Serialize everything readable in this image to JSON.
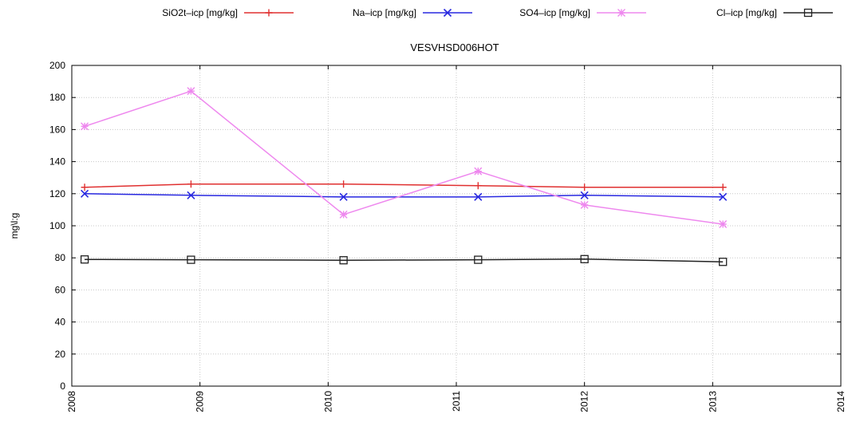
{
  "chart_data": {
    "type": "line",
    "title": "VESVHSD006HOT",
    "ylabel": "mg\\l:g",
    "xlabel": "",
    "x_ticks": [
      "2008",
      "2009",
      "2010",
      "2011",
      "2012",
      "2013",
      "2014"
    ],
    "y_ticks": [
      "0",
      "20",
      "40",
      "60",
      "80",
      "100",
      "120",
      "140",
      "160",
      "180",
      "200"
    ],
    "xlim": [
      2008,
      2014
    ],
    "ylim": [
      0,
      200
    ],
    "grid": true,
    "legend_position": "top",
    "x": [
      2008.1,
      2008.93,
      2010.12,
      2011.17,
      2012.0,
      2013.08
    ],
    "series": [
      {
        "name": "SiO2t–icp [mg/kg]",
        "color": "#e03030",
        "marker": "plus",
        "values": [
          124,
          126,
          126,
          125,
          124,
          124
        ]
      },
      {
        "name": "Na–icp [mg/kg]",
        "color": "#2828e0",
        "marker": "cross",
        "values": [
          120,
          119,
          118,
          118,
          119,
          118
        ]
      },
      {
        "name": "SO4–icp [mg/kg]",
        "color": "#ee88ee",
        "marker": "star",
        "values": [
          162,
          184,
          107,
          134,
          113,
          101
        ]
      },
      {
        "name": "Cl–icp [mg/kg]",
        "color": "#222222",
        "marker": "square",
        "values": [
          79,
          78.8,
          78.5,
          78.8,
          79.2,
          77.5
        ]
      }
    ]
  }
}
